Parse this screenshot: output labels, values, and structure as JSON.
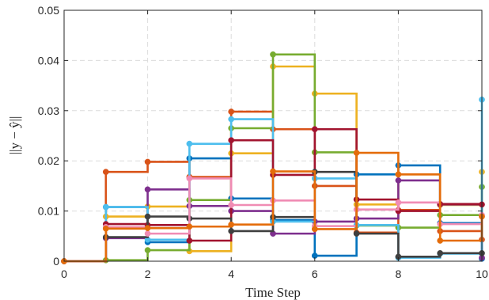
{
  "chart_data": {
    "type": "line",
    "style": "stairs-with-markers",
    "xlabel": "Time Step",
    "ylabel": "||y − ŷ||",
    "xlim": [
      0,
      10
    ],
    "ylim": [
      0,
      0.05
    ],
    "xticks": [
      0,
      2,
      4,
      6,
      8,
      10
    ],
    "yticks": [
      0,
      0.01,
      0.02,
      0.03,
      0.04,
      0.05
    ],
    "xtick_labels": [
      "0",
      "2",
      "4",
      "6",
      "8",
      "10"
    ],
    "ytick_labels": [
      "0",
      "0.01",
      "0.02",
      "0.03",
      "0.04",
      "0.05"
    ],
    "grid": true,
    "x": [
      0,
      1,
      2,
      3,
      4,
      5,
      6,
      7,
      8,
      9,
      10
    ],
    "series": [
      {
        "color": "#0072BD",
        "values": [
          0,
          0.0108,
          0.0038,
          0.0205,
          0.0125,
          0.0082,
          0.0011,
          0.0173,
          0.0191,
          0.0076,
          0.0005
        ]
      },
      {
        "color": "#D95319",
        "values": [
          0,
          0.0178,
          0.0198,
          0.0168,
          0.0298,
          0.0263,
          0.015,
          0.0057,
          0.0102,
          0.006,
          0.0043
        ]
      },
      {
        "color": "#EDB120",
        "values": [
          0,
          0.0089,
          0.0109,
          0.002,
          0.0215,
          0.0388,
          0.0334,
          0.0113,
          0.0173,
          0.0112,
          0.0178
        ]
      },
      {
        "color": "#7E2F8E",
        "values": [
          0,
          0.0046,
          0.0143,
          0.011,
          0.01,
          0.0055,
          0.0079,
          0.0085,
          0.0161,
          0.0113,
          0.0007
        ]
      },
      {
        "color": "#77AC30",
        "values": [
          0,
          0.0002,
          0.0022,
          0.0122,
          0.0265,
          0.0412,
          0.0217,
          0.0071,
          0.0067,
          0.0092,
          0.0148
        ]
      },
      {
        "color": "#4DBEEE",
        "values": [
          0,
          0.0108,
          0.0043,
          0.0234,
          0.0283,
          0.0079,
          0.0165,
          0.0072,
          0.0007,
          0.0015,
          0.0322
        ]
      },
      {
        "color": "#A2142F",
        "values": [
          0,
          0.0074,
          0.0072,
          0.0041,
          0.0241,
          0.0172,
          0.0263,
          0.0123,
          0.01,
          0.0114,
          0.0113
        ]
      },
      {
        "color": "#404040",
        "values": [
          0,
          0.0048,
          0.0089,
          0.0085,
          0.006,
          0.0088,
          0.0178,
          0.0055,
          0.0009,
          0.0016,
          0.0016
        ]
      },
      {
        "color": "#F08CB4",
        "values": [
          0,
          0.0068,
          0.0055,
          0.0165,
          0.0112,
          0.0121,
          0.007,
          0.0103,
          0.0117,
          0.0074,
          0.0092
        ]
      },
      {
        "color": "#E46C0A",
        "values": [
          0,
          0.0065,
          0.0066,
          0.0069,
          0.0073,
          0.0179,
          0.0064,
          0.0216,
          0.0173,
          0.0041,
          0.0089
        ]
      }
    ]
  }
}
